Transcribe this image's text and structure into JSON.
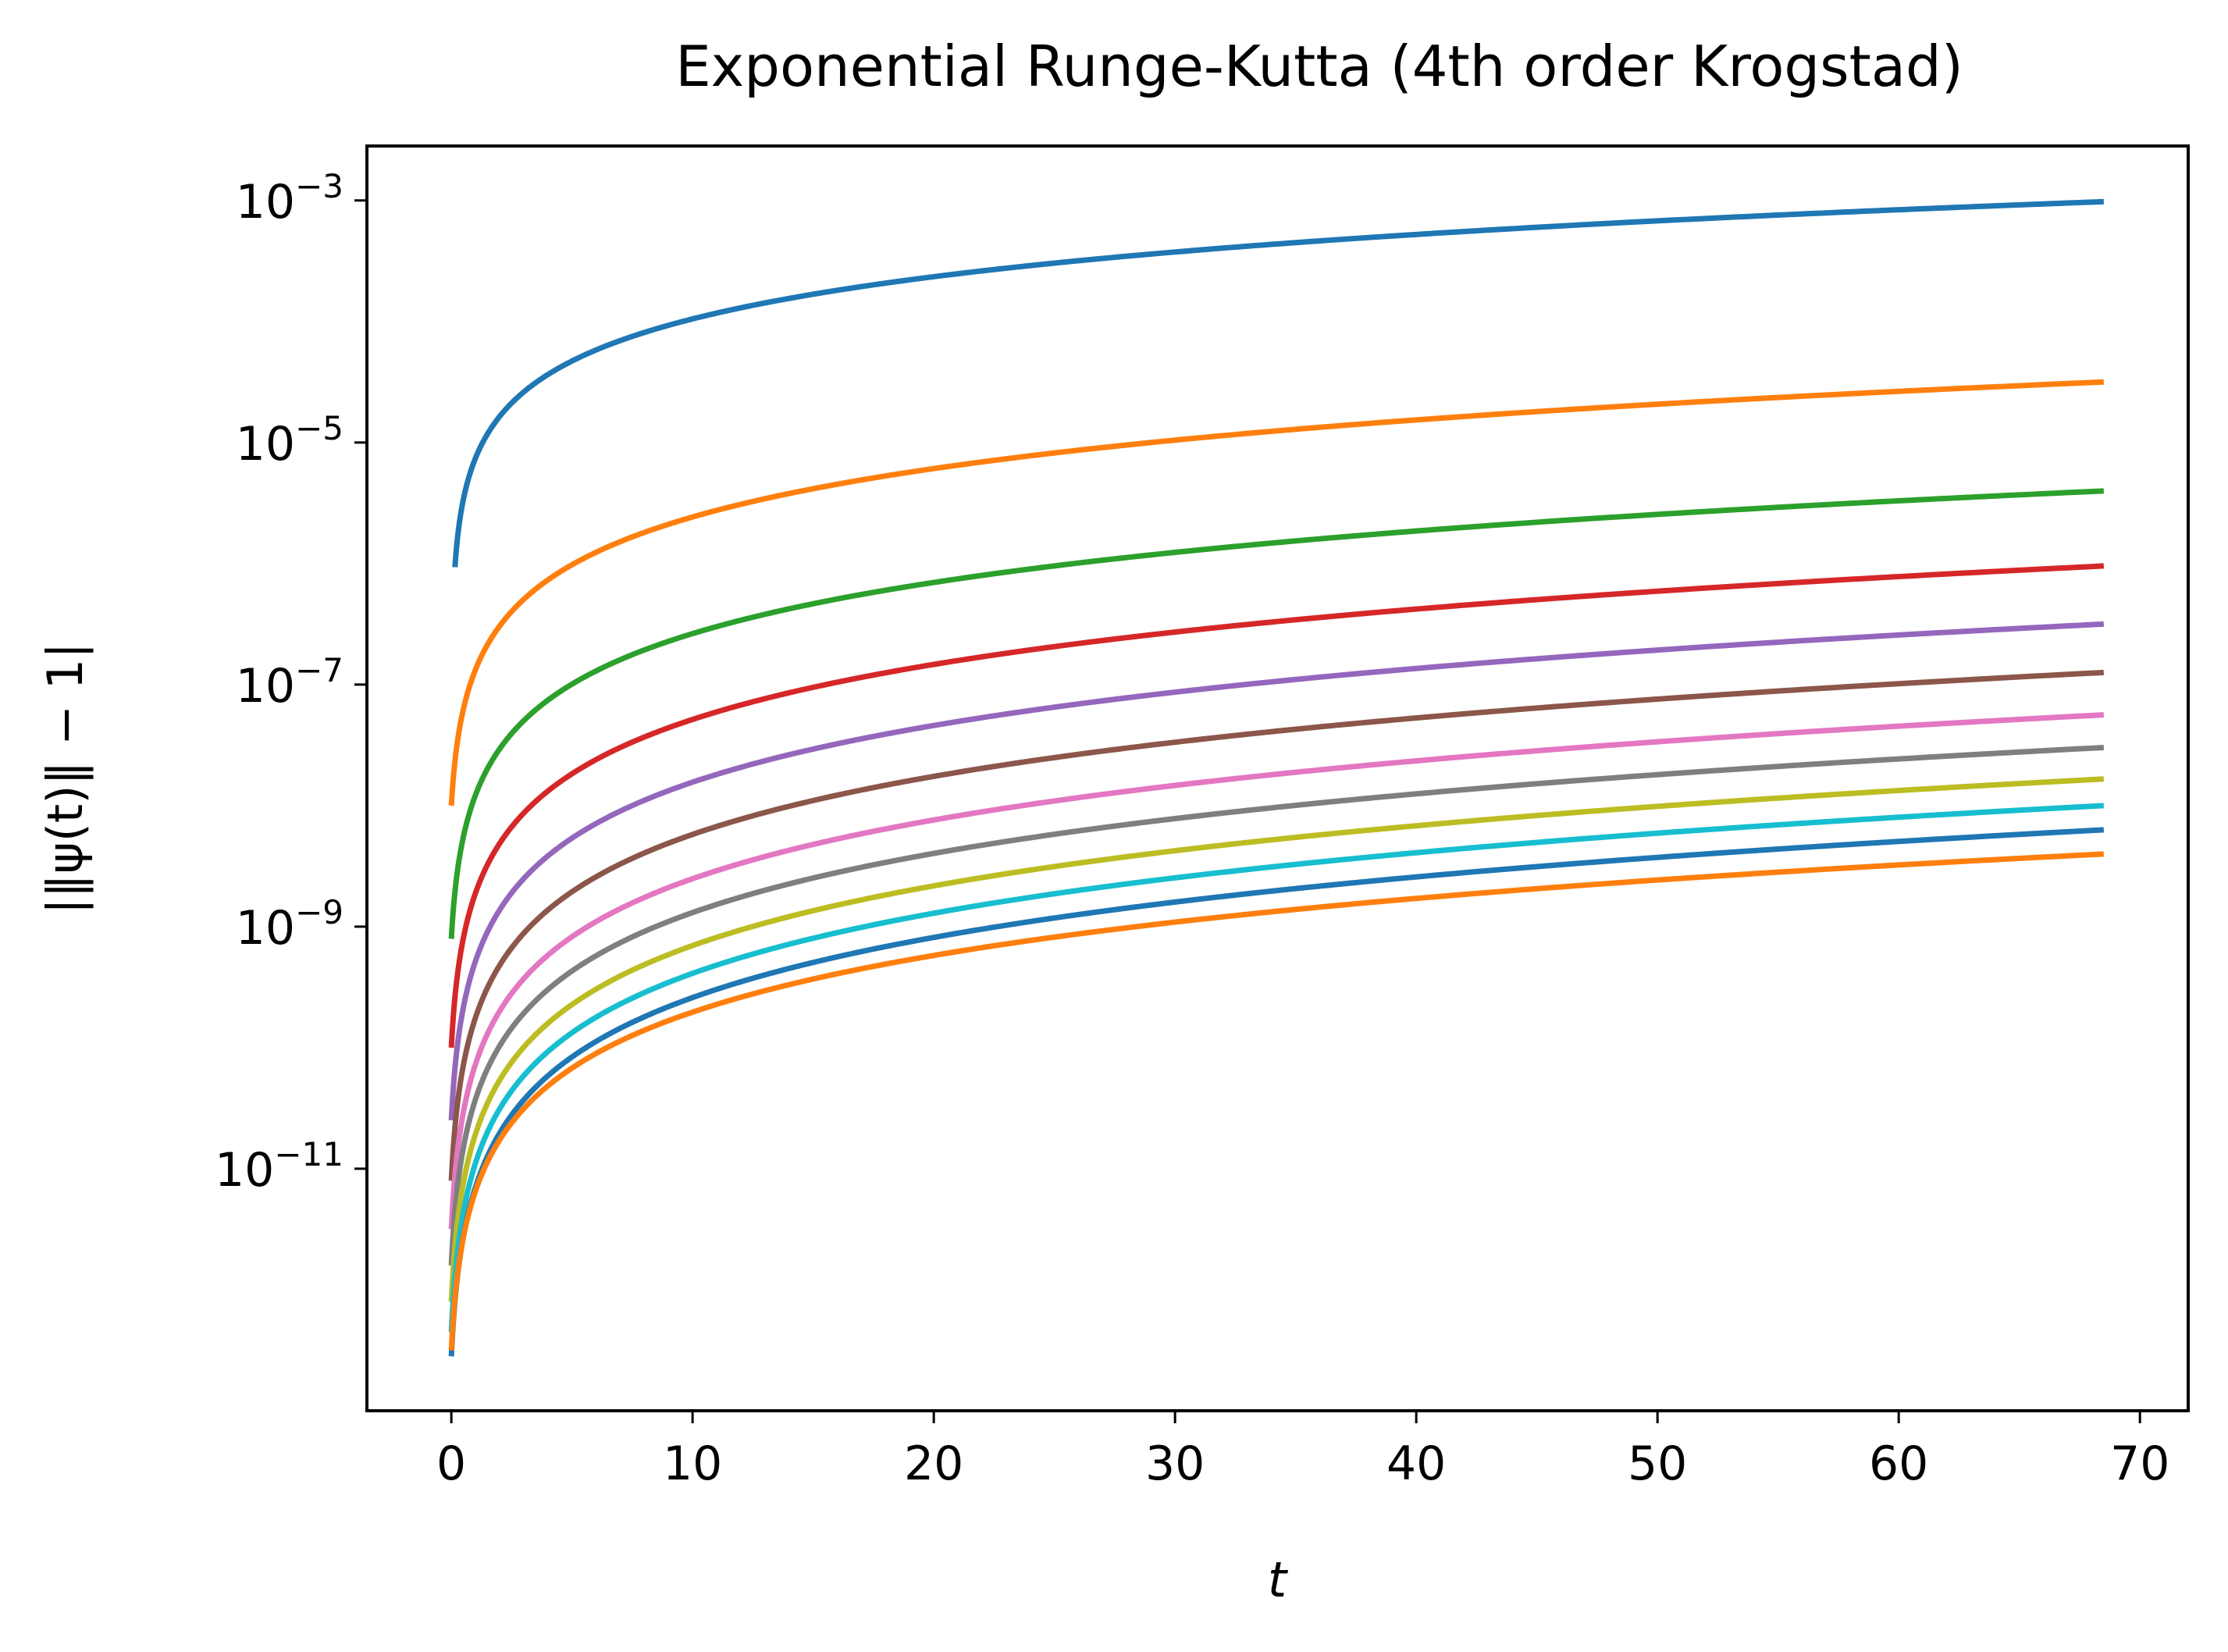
{
  "chart_data": {
    "type": "line",
    "title": "Exponential Runge-Kutta (4th order Krogstad)",
    "xlabel": "t",
    "ylabel": "|‖ψ(t)‖ − 1|",
    "xlim": [
      -3.5,
      72
    ],
    "ylim_log10": [
      -13.0,
      -2.55
    ],
    "yscale": "log",
    "grid": false,
    "x_ticks": [
      {
        "value": 0,
        "label": "0"
      },
      {
        "value": 10,
        "label": "10"
      },
      {
        "value": 20,
        "label": "20"
      },
      {
        "value": 30,
        "label": "30"
      },
      {
        "value": 40,
        "label": "40"
      },
      {
        "value": 50,
        "label": "50"
      },
      {
        "value": 60,
        "label": "60"
      },
      {
        "value": 70,
        "label": "70"
      }
    ],
    "y_ticks": [
      {
        "exponent": -3,
        "base": "10",
        "sup": "−3"
      },
      {
        "exponent": -5,
        "base": "10",
        "sup": "−5"
      },
      {
        "exponent": -7,
        "base": "10",
        "sup": "−7"
      },
      {
        "exponent": -9,
        "base": "10",
        "sup": "−9"
      },
      {
        "exponent": -11,
        "base": "10",
        "sup": "−11"
      }
    ],
    "x_end": 68.5,
    "series": [
      {
        "color": "#1f77b4",
        "x_start": 0.15,
        "y_start_log10": -6.03,
        "y_end_log10": -3.01
      },
      {
        "color": "#ff7f0e",
        "x_start": 0.0,
        "y_start_log10": -8.0,
        "y_end_log10": -4.5
      },
      {
        "color": "#2ca02c",
        "x_start": 0.0,
        "y_start_log10": -9.1,
        "y_end_log10": -5.4
      },
      {
        "color": "#d62728",
        "x_start": 0.0,
        "y_start_log10": -10.0,
        "y_end_log10": -6.02
      },
      {
        "color": "#9467bd",
        "x_start": 0.0,
        "y_start_log10": -10.6,
        "y_end_log10": -6.5
      },
      {
        "color": "#8c564b",
        "x_start": 0.0,
        "y_start_log10": -11.1,
        "y_end_log10": -6.9
      },
      {
        "color": "#e377c2",
        "x_start": 0.0,
        "y_start_log10": -11.5,
        "y_end_log10": -7.25
      },
      {
        "color": "#7f7f7f",
        "x_start": 0.0,
        "y_start_log10": -11.8,
        "y_end_log10": -7.52
      },
      {
        "color": "#bcbd22",
        "x_start": 0.0,
        "y_start_log10": -12.1,
        "y_end_log10": -7.78
      },
      {
        "color": "#17becf",
        "x_start": 0.0,
        "y_start_log10": -12.35,
        "y_end_log10": -8.0
      },
      {
        "color": "#1f77b4",
        "x_start": 0.0,
        "y_start_log10": -12.55,
        "y_end_log10": -8.2
      },
      {
        "color": "#ff7f0e",
        "x_start": 0.0,
        "y_start_log10": -12.5,
        "y_end_log10": -8.4
      }
    ]
  }
}
